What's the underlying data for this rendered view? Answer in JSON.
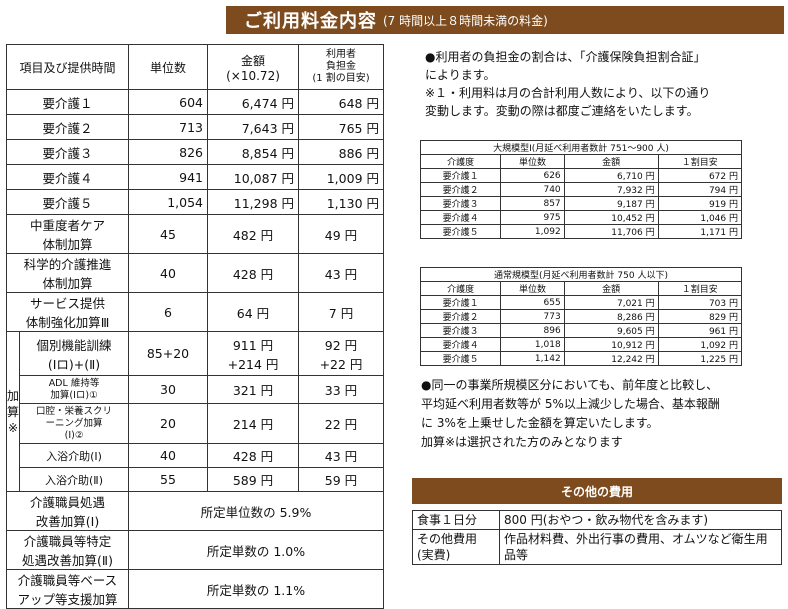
{
  "banner": {
    "title": "ご利用料金内容",
    "subtitle": "(7 時間以上８時間未満の料金)"
  },
  "main_table": {
    "headers": {
      "item": "項目及び提供時間",
      "units": "単位数",
      "amount_line1": "金額",
      "amount_line2": "(×10.72)",
      "burden_line1": "利用者",
      "burden_line2": "負担金",
      "burden_line3": "(1 割の目安)"
    },
    "care_rows": [
      {
        "label": "要介護１",
        "units": "604",
        "amount": "6,474 円",
        "burden": "648 円"
      },
      {
        "label": "要介護２",
        "units": "713",
        "amount": "7,643 円",
        "burden": "765 円"
      },
      {
        "label": "要介護３",
        "units": "826",
        "amount": "8,854 円",
        "burden": "886 円"
      },
      {
        "label": "要介護４",
        "units": "941",
        "amount": "10,087 円",
        "burden": "1,009 円"
      },
      {
        "label": "要介護５",
        "units": "1,054",
        "amount": "11,298 円",
        "burden": "1,130 円"
      }
    ],
    "extra_rows": [
      {
        "label1": "中重度者ケア",
        "label2": "体制加算",
        "units": "45",
        "amount": "482 円",
        "burden": "49 円"
      },
      {
        "label1": "科学的介護推進",
        "label2": "体制加算",
        "units": "40",
        "amount": "428 円",
        "burden": "43 円"
      },
      {
        "label1": "サービス提供",
        "label2": "体制強化加算Ⅲ",
        "units": "6",
        "amount": "64 円",
        "burden": "7 円"
      }
    ],
    "side_label": {
      "c1": "加",
      "c2": "算",
      "c3": "※"
    },
    "addon_rows": [
      {
        "label1": "個別機能訓練",
        "label2": "(Ⅰロ)+(Ⅱ)",
        "units": "85+20",
        "amount1": "911 円",
        "amount2": "+214 円",
        "burden1": "92 円",
        "burden2": "+22 円"
      },
      {
        "label1": "ADL 維持等",
        "label2": "加算(Ⅰロ)①",
        "units": "30",
        "amount": "321 円",
        "burden": "33 円"
      },
      {
        "label1": "口腔・栄養スクリ",
        "label2": "ーニング加算",
        "label3": "(Ⅰ)②",
        "units": "20",
        "amount": "214 円",
        "burden": "22 円"
      },
      {
        "label1": "入浴介助(Ⅰ)",
        "units": "40",
        "amount": "428 円",
        "burden": "43 円"
      },
      {
        "label1": "入浴介助(Ⅱ)",
        "units": "55",
        "amount": "589 円",
        "burden": "59 円"
      }
    ],
    "rate_rows": [
      {
        "label1": "介護職員処遇",
        "label2": "改善加算(Ⅰ)",
        "value": "所定単位数の 5.9%"
      },
      {
        "label1": "介護職員等特定",
        "label2": "処遇改善加算(Ⅱ)",
        "value": "所定単数の 1.0%"
      },
      {
        "label1": "介護職員等ベース",
        "label2": "アップ等支援加算",
        "value": "所定単数の 1.1%"
      }
    ]
  },
  "notes": {
    "n1a": "●利用者の負担金の割合は、「介護保険負担割合証」",
    "n1b": "によります。",
    "n2a": "※１・利用料は月の合計利用人数により、以下の通り",
    "n2b": "変動します。変動の際は都度ご連絡をいたします。",
    "n3a": "●同一の事業所規模区分においても、前年度と比較し、",
    "n3b": "平均延べ利用者数等が 5%以上減少した場合、基本報酬",
    "n3c": "に 3%を上乗せした金額を算定いたします。",
    "n3d": "加算※は選択された方のみとなります"
  },
  "large_table": {
    "caption": "大規模型Ⅰ(月延べ利用者数計 751～900 人)",
    "headers": [
      "介護度",
      "単位数",
      "金額",
      "１割目安"
    ],
    "rows": [
      [
        "要介護１",
        "626",
        "6,710 円",
        "672 円"
      ],
      [
        "要介護２",
        "740",
        "7,932 円",
        "794 円"
      ],
      [
        "要介護３",
        "857",
        "9,187 円",
        "919 円"
      ],
      [
        "要介護４",
        "975",
        "10,452 円",
        "1,046 円"
      ],
      [
        "要介護５",
        "1,092",
        "11,706 円",
        "1,171 円"
      ]
    ]
  },
  "normal_table": {
    "caption": "通常規模型(月延べ利用者数計 750 人以下)",
    "headers": [
      "介護度",
      "単位数",
      "金額",
      "１割目安"
    ],
    "rows": [
      [
        "要介護１",
        "655",
        "7,021 円",
        "703 円"
      ],
      [
        "要介護２",
        "773",
        "8,286 円",
        "829 円"
      ],
      [
        "要介護３",
        "896",
        "9,605 円",
        "961 円"
      ],
      [
        "要介護４",
        "1,018",
        "10,912 円",
        "1,092 円"
      ],
      [
        "要介護５",
        "1,142",
        "12,242 円",
        "1,225 円"
      ]
    ]
  },
  "other_costs": {
    "title": "その他の費用",
    "meal_label": "食事１日分",
    "meal_value": "800 円(おやつ・飲み物代を含みます)",
    "other_label1": "その他費用",
    "other_label2": "(実費)",
    "other_value": "作品材料費、外出行事の費用、オムツなど衛生用品等"
  },
  "colors": {
    "accent_brown": "#7d4b1d"
  }
}
